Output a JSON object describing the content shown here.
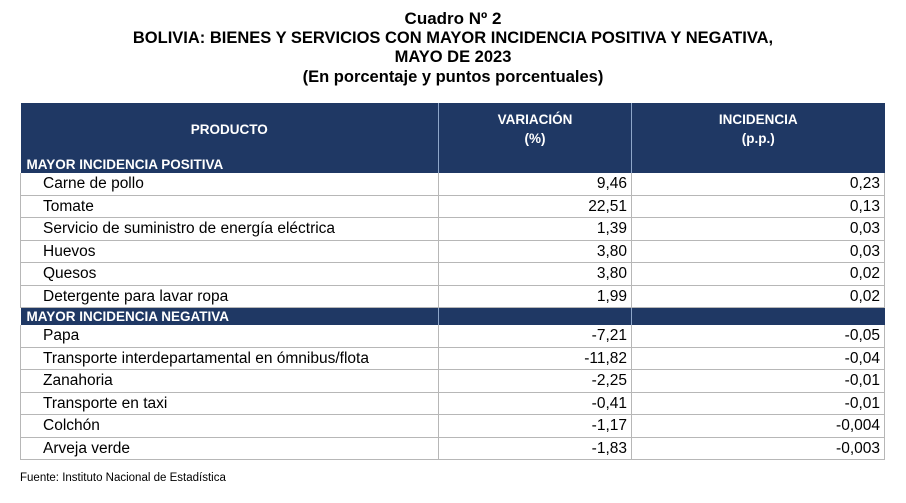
{
  "title": {
    "line1": "Cuadro Nº 2",
    "line2": "BOLIVIA: BIENES Y SERVICIOS CON MAYOR INCIDENCIA POSITIVA Y NEGATIVA,",
    "line3": "MAYO DE 2023",
    "line4": "(En porcentaje y puntos porcentuales)"
  },
  "header": {
    "producto": "PRODUCTO",
    "variacion": "VARIACIÓN",
    "variacion_unit": "(%)",
    "incidencia": "INCIDENCIA",
    "incidencia_unit": "(p.p.)"
  },
  "sections": [
    {
      "label": "MAYOR INCIDENCIA POSITIVA",
      "rows": [
        {
          "producto": "Carne de pollo",
          "variacion": "9,46",
          "incidencia": "0,23"
        },
        {
          "producto": "Tomate",
          "variacion": "22,51",
          "incidencia": "0,13"
        },
        {
          "producto": "Servicio de suministro de energía eléctrica",
          "variacion": "1,39",
          "incidencia": "0,03"
        },
        {
          "producto": "Huevos",
          "variacion": "3,80",
          "incidencia": "0,03"
        },
        {
          "producto": "Quesos",
          "variacion": "3,80",
          "incidencia": "0,02"
        },
        {
          "producto": "Detergente para lavar ropa",
          "variacion": "1,99",
          "incidencia": "0,02"
        }
      ]
    },
    {
      "label": "MAYOR INCIDENCIA NEGATIVA",
      "rows": [
        {
          "producto": "Papa",
          "variacion": "-7,21",
          "incidencia": "-0,05"
        },
        {
          "producto": "Transporte interdepartamental en ómnibus/flota",
          "variacion": "-11,82",
          "incidencia": "-0,04"
        },
        {
          "producto": "Zanahoria",
          "variacion": "-2,25",
          "incidencia": "-0,01"
        },
        {
          "producto": "Transporte en taxi",
          "variacion": "-0,41",
          "incidencia": "-0,01"
        },
        {
          "producto": "Colchón",
          "variacion": "-1,17",
          "incidencia": "-0,004"
        },
        {
          "producto": "Arveja verde",
          "variacion": "-1,83",
          "incidencia": "-0,003"
        }
      ]
    }
  ],
  "source": "Fuente: Instituto Nacional de Estadística",
  "colors": {
    "header_bg": "#1f3864",
    "header_text": "#ffffff",
    "grid": "#b7b7b7"
  }
}
